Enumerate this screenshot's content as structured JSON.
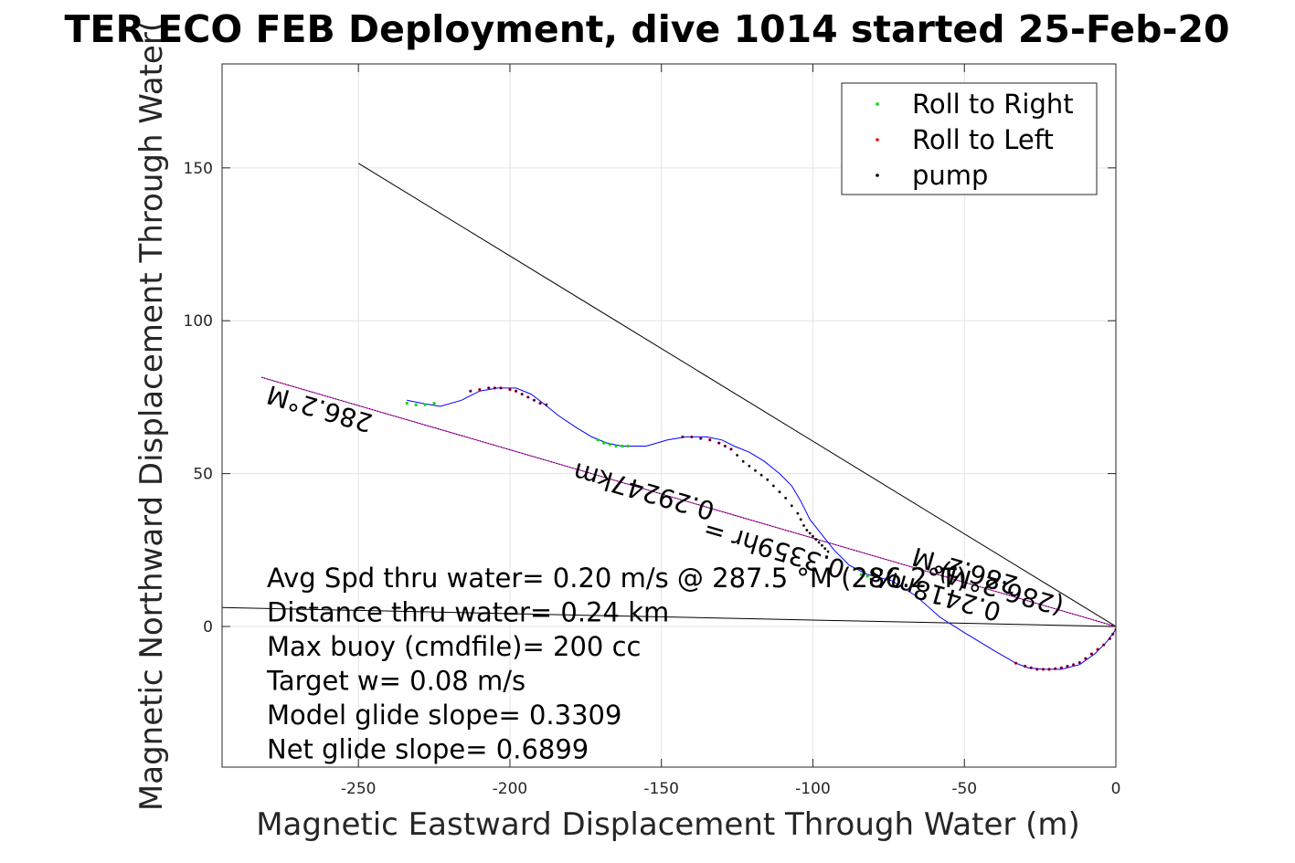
{
  "chart_data": {
    "type": "scatter",
    "title": "TER ECO FEB Deployment, dive 1014 started 25-Feb-20",
    "xlabel": "Magnetic Eastward Displacement Through Water (m)",
    "ylabel": "Magnetic Northward Displacement Through Water(",
    "xlim": [
      -295,
      0
    ],
    "ylim": [
      -46,
      184
    ],
    "xticks": [
      -250,
      -200,
      -150,
      -100,
      -50,
      0
    ],
    "yticks": [
      0,
      50,
      100,
      150
    ],
    "xtick_labels": [
      "-250",
      "-200",
      "-150",
      "-100",
      "-50",
      "0"
    ],
    "ytick_labels": [
      "0",
      "50",
      "100",
      "150"
    ],
    "grid": true,
    "legend_position": "top-right",
    "legend": [
      {
        "label": "Roll to Right",
        "color": "#00dd00"
      },
      {
        "label": "Roll to Left",
        "color": "#ff0000"
      },
      {
        "label": "pump",
        "color": "#000000"
      }
    ],
    "track_color": "#0000ff",
    "heading_line_color": "#cc00cc",
    "track": [
      [
        0,
        -1
      ],
      [
        -3,
        -5
      ],
      [
        -7,
        -9
      ],
      [
        -12,
        -12.5
      ],
      [
        -18,
        -14
      ],
      [
        -24,
        -14
      ],
      [
        -29,
        -13.5
      ],
      [
        -33,
        -12
      ],
      [
        -40,
        -8
      ],
      [
        -50,
        -2
      ],
      [
        -58,
        3
      ],
      [
        -66,
        10
      ],
      [
        -74,
        15
      ],
      [
        -82,
        17
      ],
      [
        -88,
        20
      ],
      [
        -93,
        25
      ],
      [
        -97,
        30
      ],
      [
        -101,
        35
      ],
      [
        -104,
        41
      ],
      [
        -107,
        46
      ],
      [
        -111,
        50
      ],
      [
        -116,
        54
      ],
      [
        -121,
        57
      ],
      [
        -126,
        59
      ],
      [
        -130,
        61
      ],
      [
        -135,
        62
      ],
      [
        -142,
        62
      ],
      [
        -148,
        61
      ],
      [
        -155,
        59
      ],
      [
        -163,
        59
      ],
      [
        -168,
        60
      ],
      [
        -173,
        62
      ],
      [
        -178,
        65
      ],
      [
        -184,
        69
      ],
      [
        -189,
        73
      ],
      [
        -193,
        76
      ],
      [
        -198,
        78
      ],
      [
        -204,
        78
      ],
      [
        -210,
        77
      ],
      [
        -216,
        74
      ],
      [
        -223,
        72
      ],
      [
        -229,
        73
      ],
      [
        -234,
        74
      ]
    ],
    "green_points": [
      [
        -171,
        61
      ],
      [
        -169,
        60
      ],
      [
        -167,
        59.5
      ],
      [
        -165,
        59
      ],
      [
        -163,
        59
      ],
      [
        -161,
        59
      ],
      [
        -234,
        73
      ],
      [
        -231,
        72.5
      ],
      [
        -228,
        72.5
      ],
      [
        -225,
        73
      ],
      [
        -84,
        17
      ],
      [
        -82,
        16.5
      ]
    ],
    "red_points": [
      [
        -213,
        77
      ],
      [
        -210,
        77.5
      ],
      [
        -207,
        78
      ],
      [
        -205,
        78
      ],
      [
        -203,
        78
      ],
      [
        -200,
        77.5
      ],
      [
        -198,
        77
      ],
      [
        -196,
        76
      ],
      [
        -194,
        75
      ],
      [
        -192,
        74
      ],
      [
        -190,
        73
      ],
      [
        -188,
        72.5
      ],
      [
        -143,
        62
      ],
      [
        -140,
        62
      ],
      [
        -137,
        61.5
      ],
      [
        -134,
        61
      ],
      [
        -131,
        60
      ],
      [
        -129,
        59
      ],
      [
        -127,
        58
      ],
      [
        -33,
        -12
      ],
      [
        -30,
        -13
      ],
      [
        -28,
        -13.5
      ],
      [
        -26,
        -14
      ],
      [
        -24,
        -14
      ],
      [
        -22,
        -14
      ],
      [
        -20,
        -13.8
      ],
      [
        -18,
        -13.5
      ],
      [
        -16,
        -13
      ],
      [
        -14,
        -12.5
      ],
      [
        -12,
        -11.8
      ],
      [
        -10,
        -10.5
      ],
      [
        -8,
        -9
      ],
      [
        -6,
        -7.5
      ],
      [
        -4,
        -6
      ],
      [
        -2,
        -4
      ],
      [
        -1,
        -2.5
      ],
      [
        0,
        -1
      ]
    ],
    "pump_points": [
      [
        -125,
        56
      ],
      [
        -123,
        54
      ],
      [
        -121,
        52.5
      ],
      [
        -119,
        51
      ],
      [
        -117,
        49.5
      ],
      [
        -115,
        48
      ],
      [
        -113,
        46
      ],
      [
        -111,
        44
      ],
      [
        -109,
        42
      ],
      [
        -107,
        39.5
      ],
      [
        -105,
        37
      ],
      [
        -104,
        35
      ],
      [
        -103,
        33
      ],
      [
        -102,
        31.5
      ],
      [
        -101,
        30.5
      ],
      [
        -100,
        29.5
      ],
      [
        -99,
        28.5
      ],
      [
        -98,
        27.5
      ],
      [
        -97,
        26.5
      ],
      [
        -96,
        25.5
      ],
      [
        -95,
        24.5
      ]
    ],
    "heading_line": [
      [
        -282,
        81.5
      ],
      [
        0,
        0
      ]
    ],
    "lines": [
      {
        "from": [
          -250,
          151.5
        ],
        "to": [
          0,
          0
        ]
      },
      {
        "from": [
          -295,
          6.2
        ],
        "to": [
          0,
          0
        ]
      }
    ],
    "annotations": [
      {
        "text": "286.2°M",
        "x": -262,
        "y": 74,
        "angle": 196.2
      },
      {
        "text": "0.29247km",
        "x": -155,
        "y": 47,
        "angle": 196.2
      },
      {
        "text": "0.3359hr =",
        "x": -112,
        "y": 28,
        "angle": 196.2
      },
      {
        "text": "0.2418m/s",
        "x": -59,
        "y": 13.5,
        "angle": 196.2
      },
      {
        "text": "(286.2°M)",
        "x": -37,
        "y": 15,
        "angle": 196.2
      },
      {
        "text": "286.2°M",
        "x": -49,
        "y": 21,
        "angle": 196.2
      }
    ],
    "stats": [
      "Avg Spd thru water=  0.20 m/s @ 287.5 °M (286.2°T)",
      "Distance thru water=  0.24 km",
      "Max buoy (cmdfile)= 200 cc",
      "Target w= 0.08 m/s",
      "Model glide slope= 0.3309",
      "Net glide slope= 0.6899"
    ]
  }
}
